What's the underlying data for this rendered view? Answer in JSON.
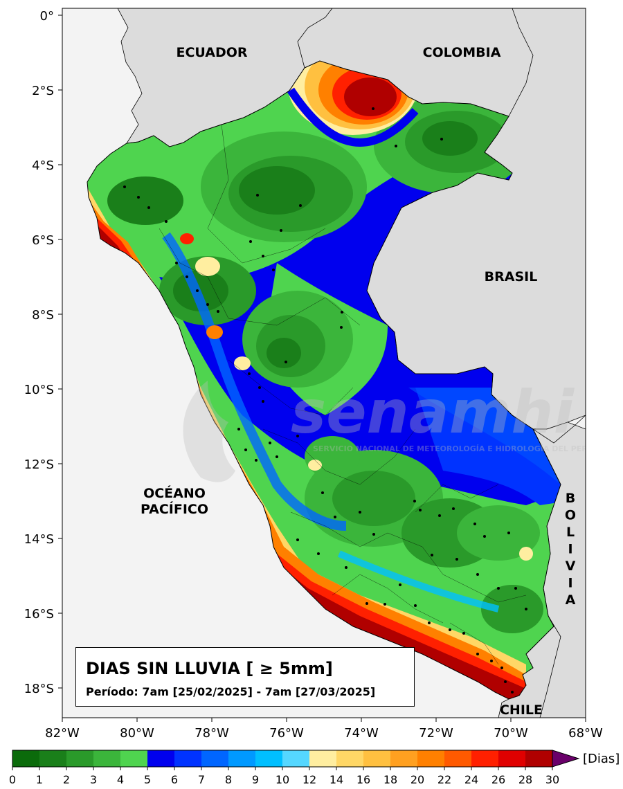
{
  "map": {
    "lat_ticks": [
      "0°",
      "2°S",
      "4°S",
      "6°S",
      "8°S",
      "10°S",
      "12°S",
      "14°S",
      "16°S",
      "18°S"
    ],
    "lon_ticks": [
      "82°W",
      "80°W",
      "78°W",
      "76°W",
      "74°W",
      "72°W",
      "70°W",
      "68°W"
    ],
    "countries": {
      "ecuador": "ECUADOR",
      "colombia": "COLOMBIA",
      "brasil": "BRASIL",
      "bolivia": "BOLIVIA",
      "chile": "CHILE"
    },
    "ocean": [
      "OCÉANO",
      "PACÍFICO"
    ],
    "watermark": "senamhi",
    "watermark_sub": "SERVICIO NACIONAL DE METEOROLOGÍA E HIDROLOGÍA DEL PERÚ"
  },
  "title": {
    "main": "DIAS SIN LLUVIA [ ≥ 5mm]",
    "period": "Período: 7am [25/02/2025] - 7am [27/03/2025]"
  },
  "colorbar": {
    "unit": "[Dias]",
    "ticks": [
      "0",
      "1",
      "2",
      "3",
      "4",
      "5",
      "6",
      "7",
      "8",
      "9",
      "10",
      "12",
      "14",
      "16",
      "18",
      "20",
      "22",
      "24",
      "26",
      "28",
      "30"
    ],
    "colors": [
      "#0b6b0b",
      "#1a7f1a",
      "#2a9a2a",
      "#3bb53b",
      "#4fd44f",
      "#0000ee",
      "#0033ff",
      "#0066ff",
      "#0099ff",
      "#00bfff",
      "#55d7ff",
      "#ffeea0",
      "#ffd766",
      "#ffc040",
      "#ffa020",
      "#ff8000",
      "#ff5a00",
      "#ff2000",
      "#e00000",
      "#b00000"
    ],
    "extend_color": "#6a006a"
  }
}
